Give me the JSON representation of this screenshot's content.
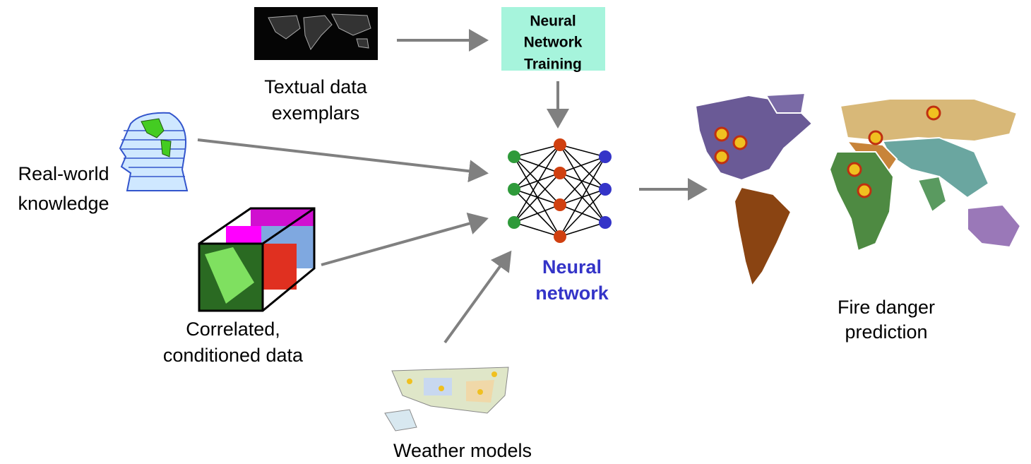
{
  "textual_data": {
    "label": [
      "Textual data",
      "exemplars"
    ]
  },
  "training": {
    "label": [
      "Neural",
      "Network",
      "Training"
    ]
  },
  "real_world": {
    "label": [
      "Real-world",
      "knowledge"
    ]
  },
  "correlated": {
    "label": [
      "Correlated,",
      "conditioned data"
    ]
  },
  "weather": {
    "label": [
      "Weather models"
    ]
  },
  "neural_network": {
    "label": [
      "Neural",
      "network"
    ]
  },
  "fire_danger": {
    "label": [
      "Fire danger",
      "prediction"
    ]
  }
}
